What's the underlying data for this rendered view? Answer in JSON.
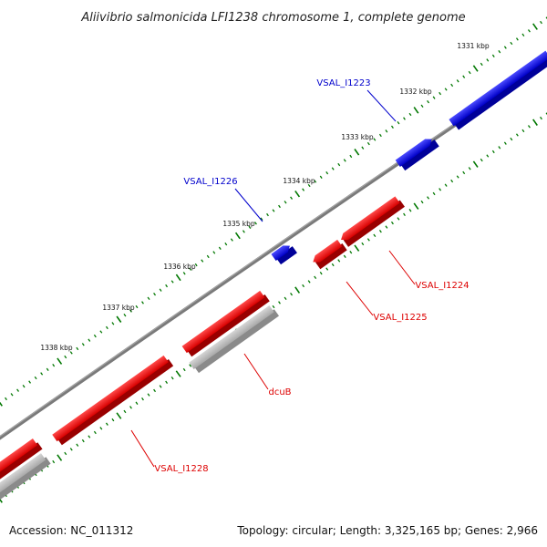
{
  "title": "Aliivibrio salmonicida LFI1238 chromosome 1, complete genome",
  "footer": {
    "accession": "Accession: NC_011312",
    "summary": "Topology: circular; Length: 3,325,165 bp; Genes: 2,966"
  },
  "colors": {
    "forward_strand": "#0000ee",
    "reverse_strand": "#ee0000",
    "pseudo_or_other": "#bbbbbb",
    "backbone": "#808080",
    "ticks": "#007700"
  },
  "scale": {
    "ticks": [
      {
        "label": "1331 kbp"
      },
      {
        "label": "1332 kbp"
      },
      {
        "label": "1333 kbp"
      },
      {
        "label": "1334 kbp"
      },
      {
        "label": "1335 kbp"
      },
      {
        "label": "1336 kbp"
      },
      {
        "label": "1337 kbp"
      },
      {
        "label": "1338 kbp"
      }
    ]
  },
  "genes": [
    {
      "label": "VSAL_I1223",
      "strand": "forward"
    },
    {
      "label": "VSAL_I1226",
      "strand": "forward"
    },
    {
      "label": "VSAL_I1224",
      "strand": "reverse"
    },
    {
      "label": "VSAL_I1225",
      "strand": "reverse"
    },
    {
      "label": "dcuB",
      "strand": "reverse"
    },
    {
      "label": "VSAL_I1228",
      "strand": "reverse"
    }
  ]
}
